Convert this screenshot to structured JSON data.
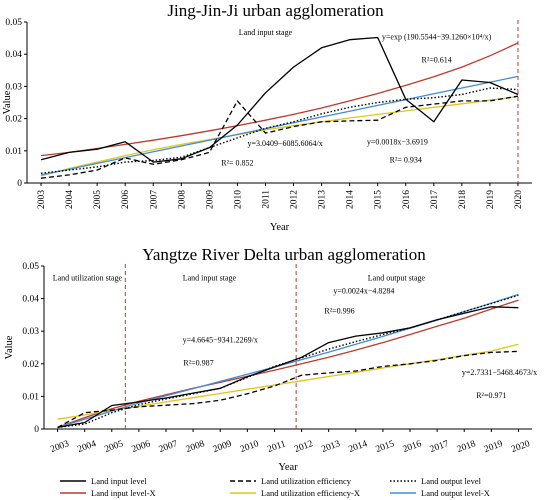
{
  "chart_data": [
    {
      "type": "line",
      "title": "Jing-Jin-Ji urban agglomeration",
      "xlabel": "Year",
      "ylabel": "Value",
      "ylim": [
        0,
        0.05
      ],
      "yticks": [
        "0",
        "0.01",
        "0.02",
        "0.03",
        "0.04",
        "0.05"
      ],
      "x": [
        "2003",
        "2004",
        "2005",
        "2006",
        "2007",
        "2008",
        "2009",
        "2010",
        "2011",
        "2012",
        "2013",
        "2014",
        "2015",
        "2016",
        "2017",
        "2018",
        "2019",
        "2020"
      ],
      "series": [
        {
          "name": "Land input level",
          "values": [
            0.0072,
            0.0095,
            0.0105,
            0.0128,
            0.0065,
            0.0075,
            0.011,
            0.018,
            0.028,
            0.036,
            0.042,
            0.0445,
            0.0452,
            0.026,
            0.019,
            0.032,
            0.0312,
            0.0275
          ]
        },
        {
          "name": "Land utilization efficiency",
          "values": [
            0.0015,
            0.0025,
            0.004,
            0.0078,
            0.0058,
            0.0072,
            0.0095,
            0.0255,
            0.0155,
            0.0175,
            0.019,
            0.0193,
            0.0195,
            0.0235,
            0.0245,
            0.0255,
            0.0255,
            0.027
          ]
        },
        {
          "name": "Land output level",
          "values": [
            0.003,
            0.004,
            0.005,
            0.0065,
            0.007,
            0.008,
            0.011,
            0.014,
            0.017,
            0.019,
            0.0215,
            0.0235,
            0.025,
            0.026,
            0.0265,
            0.0275,
            0.0295,
            0.029
          ]
        },
        {
          "name": "Land input level-X",
          "values": [
            0.0085,
            0.0095,
            0.0107,
            0.012,
            0.0133,
            0.0147,
            0.0162,
            0.0178,
            0.0195,
            0.0213,
            0.0233,
            0.0255,
            0.0278,
            0.0303,
            0.033,
            0.036,
            0.0395,
            0.0435
          ]
        },
        {
          "name": "Land utilization efficiency-X",
          "values": [
            0.0022,
            0.0045,
            0.0065,
            0.0085,
            0.0103,
            0.012,
            0.0135,
            0.015,
            0.0165,
            0.0178,
            0.019,
            0.0202,
            0.0213,
            0.0224,
            0.0235,
            0.0246,
            0.0257,
            0.0268
          ]
        },
        {
          "name": "Land output level-X",
          "values": [
            0.0025,
            0.0043,
            0.0061,
            0.0079,
            0.0097,
            0.0115,
            0.0133,
            0.0151,
            0.0169,
            0.0187,
            0.0205,
            0.0223,
            0.0241,
            0.0259,
            0.0277,
            0.0295,
            0.0313,
            0.0331
          ]
        }
      ],
      "stage_markers": [
        "2020"
      ],
      "annotations": [
        {
          "text": "Land input stage",
          "x": "2011",
          "y": 0.046
        },
        {
          "text": "y=exp (190.5544−39.1260×10⁴/x)",
          "x": "2017.1",
          "y": 0.0445
        },
        {
          "text": "R²=0.614",
          "x": "2017.1",
          "y": 0.0375
        },
        {
          "text": "y=3.0409−6085.6064/x",
          "x": "2011.7",
          "y": 0.0115
        },
        {
          "text": "R²= 0.852",
          "x": "2010",
          "y": 0.0055
        },
        {
          "text": "y=0.0018x−3.6919",
          "x": "2015.7",
          "y": 0.012
        },
        {
          "text": "R²= 0.934",
          "x": "2016",
          "y": 0.0063
        }
      ]
    },
    {
      "type": "line",
      "title": "Yangtze River Delta urban agglomeration",
      "xlabel": "Year",
      "ylabel": "Value",
      "ylim": [
        0,
        0.05
      ],
      "yticks": [
        "0",
        "0.01",
        "0.02",
        "0.03",
        "0.04",
        "0.05"
      ],
      "x": [
        "2003",
        "2004",
        "2005",
        "2006",
        "2007",
        "2008",
        "2009",
        "2010",
        "2011",
        "2012",
        "2013",
        "2014",
        "2015",
        "2016",
        "2017",
        "2018",
        "2019",
        "2020"
      ],
      "series": [
        {
          "name": "Land input level",
          "values": [
            0.0005,
            0.002,
            0.0072,
            0.0083,
            0.0095,
            0.011,
            0.0125,
            0.016,
            0.019,
            0.022,
            0.0265,
            0.0285,
            0.0295,
            0.031,
            0.0335,
            0.0355,
            0.0375,
            0.0372
          ]
        },
        {
          "name": "Land utilization efficiency",
          "values": [
            0.0005,
            0.005,
            0.0058,
            0.0068,
            0.0073,
            0.0078,
            0.0088,
            0.0108,
            0.0132,
            0.0165,
            0.0172,
            0.0178,
            0.0192,
            0.02,
            0.021,
            0.0225,
            0.0235,
            0.0238
          ]
        },
        {
          "name": "Land output level",
          "values": [
            0.0005,
            0.0015,
            0.005,
            0.0075,
            0.0092,
            0.0108,
            0.0125,
            0.0158,
            0.0192,
            0.0218,
            0.0245,
            0.0268,
            0.029,
            0.031,
            0.0335,
            0.036,
            0.0385,
            0.041
          ]
        },
        {
          "name": "Land input level-X",
          "values": [
            0.0005,
            0.0035,
            0.0062,
            0.0085,
            0.0105,
            0.0125,
            0.0143,
            0.0162,
            0.018,
            0.02,
            0.022,
            0.0242,
            0.0265,
            0.029,
            0.0315,
            0.034,
            0.0368,
            0.0395
          ]
        },
        {
          "name": "Land utilization efficiency-X",
          "values": [
            0.003,
            0.0043,
            0.0057,
            0.007,
            0.0083,
            0.0096,
            0.0109,
            0.0122,
            0.0135,
            0.0148,
            0.0161,
            0.0174,
            0.0187,
            0.02,
            0.0213,
            0.0226,
            0.0239,
            0.026
          ]
        },
        {
          "name": "Land output level-X",
          "values": [
            0.0005,
            0.003,
            0.0055,
            0.008,
            0.0102,
            0.0124,
            0.0146,
            0.0168,
            0.019,
            0.0213,
            0.0236,
            0.026,
            0.0284,
            0.0309,
            0.0334,
            0.036,
            0.0386,
            0.0413
          ]
        }
      ],
      "stage_markers": [
        "2005.5",
        "2011.8"
      ],
      "annotations": [
        {
          "text": "Land utilization stage",
          "x": "2004.1",
          "y": 0.0455
        },
        {
          "text": "Land input stage",
          "x": "2008.6",
          "y": 0.0455
        },
        {
          "text": "Land output stage",
          "x": "2015.5",
          "y": 0.0455
        },
        {
          "text": "y=0.0024x−4.8284",
          "x": "2014.3",
          "y": 0.0415
        },
        {
          "text": "R²=0.996",
          "x": "2013.4",
          "y": 0.0355
        },
        {
          "text": "y=4.6645−9341.2269/x",
          "x": "2009",
          "y": 0.0265
        },
        {
          "text": "R²=0.987",
          "x": "2008.2",
          "y": 0.0195
        },
        {
          "text": "y=2.7331−5468.4673/x",
          "x": "2019.3",
          "y": 0.0165
        },
        {
          "text": "R²=0.971",
          "x": "2019",
          "y": 0.0095
        }
      ]
    }
  ],
  "legend": [
    {
      "label": "Land input level",
      "style": "solid",
      "color": "#000000"
    },
    {
      "label": "Land utilization efficiency",
      "style": "dashed",
      "color": "#000000"
    },
    {
      "label": "Land output level",
      "style": "dotted",
      "color": "#000000"
    },
    {
      "label": "Land input level-X",
      "style": "solid",
      "color": "#c0392b"
    },
    {
      "label": "Land utilization efficiency-X",
      "style": "solid",
      "color": "#e3c51a"
    },
    {
      "label": "Land output level-X",
      "style": "solid",
      "color": "#3d8fd6"
    }
  ],
  "colors": {
    "input": "#000000",
    "utilization": "#000000",
    "output": "#000000",
    "input_fit": "#c0392b",
    "utilization_fit": "#e3c51a",
    "output_fit": "#3d8fd6",
    "stage_marker": "#c0392b"
  }
}
